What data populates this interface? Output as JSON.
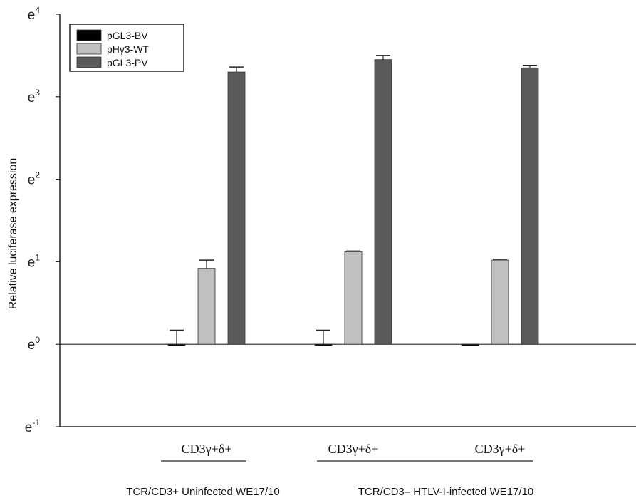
{
  "chart_data": {
    "type": "bar",
    "ylabel": "Relative luciferase expression",
    "y_scale": "log (base e)",
    "ylim": [
      -1,
      4
    ],
    "y_ticks": [
      {
        "base": "e",
        "exp": "-1",
        "value": -1
      },
      {
        "base": "e",
        "exp": "0",
        "value": 0
      },
      {
        "base": "e",
        "exp": "1",
        "value": 1
      },
      {
        "base": "e",
        "exp": "2",
        "value": 2
      },
      {
        "base": "e",
        "exp": "3",
        "value": 3
      },
      {
        "base": "e",
        "exp": "4",
        "value": 4
      }
    ],
    "categories": [
      "CD3γ+δ+",
      "CD3γ+δ+",
      "CD3γ+δ+"
    ],
    "series": [
      {
        "name": "pGL3-BV",
        "color": "#000000",
        "values": [
          0,
          0,
          0
        ],
        "errors": [
          0.17,
          0.17,
          0.0
        ]
      },
      {
        "name": "pHγ3-WT",
        "color": "#c0c0c0",
        "values": [
          0.92,
          1.12,
          1.02
        ],
        "errors": [
          0.1,
          0.01,
          0.01
        ]
      },
      {
        "name": "pGL3-PV",
        "color": "#5a5a5a",
        "values": [
          3.3,
          3.45,
          3.35
        ],
        "errors": [
          0.06,
          0.05,
          0.03
        ]
      }
    ],
    "group_labels": [
      {
        "text": "TCR/CD3+ Uninfected WE17/10",
        "categories": [
          0
        ]
      },
      {
        "text": "TCR/CD3– HTLV-I-infected WE17/10",
        "categories": [
          1,
          2
        ]
      }
    ],
    "reference_line": 0,
    "legend_position": "top-left",
    "grid": false
  }
}
